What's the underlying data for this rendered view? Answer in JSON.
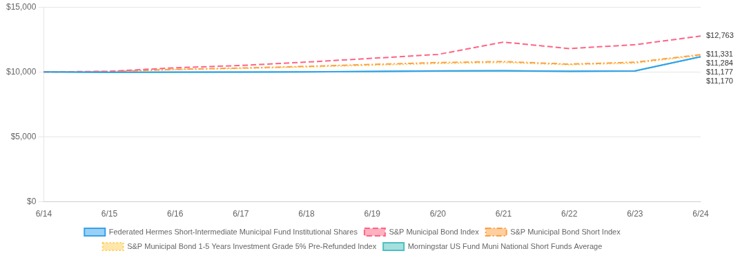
{
  "chart_data": {
    "type": "line",
    "categories": [
      "6/14",
      "6/15",
      "6/16",
      "6/17",
      "6/18",
      "6/19",
      "6/20",
      "6/21",
      "6/22",
      "6/23",
      "6/24"
    ],
    "series": [
      {
        "name": "Federated Hermes Short-Intermediate Municipal Fund Institutional Shares",
        "line_style": "solid",
        "values": [
          10000,
          9975,
          9985,
          9995,
          10010,
          10040,
          10080,
          10100,
          10060,
          10090,
          11177
        ]
      },
      {
        "name": "S&P Municipal Bond Index",
        "line_style": "dashed",
        "values": [
          10000,
          10050,
          10320,
          10500,
          10760,
          11050,
          11350,
          12300,
          11800,
          12100,
          12763
        ]
      },
      {
        "name": "S&P Municipal Bond Short Index",
        "line_style": "dashdot",
        "values": [
          10000,
          10030,
          10200,
          10300,
          10430,
          10580,
          10720,
          10800,
          10600,
          10750,
          11331
        ]
      },
      {
        "name": "S&P Municipal Bond 1-5 Years Investment Grade 5% Pre-Refunded Index",
        "line_style": "dotted",
        "values": [
          10000,
          10025,
          10180,
          10270,
          10390,
          10520,
          10650,
          10730,
          10560,
          10680,
          11284
        ]
      },
      {
        "name": "Morningstar US Fund Muni National Short Funds Average",
        "line_style": "solid",
        "values": [
          10000,
          9970,
          9980,
          9990,
          10005,
          10030,
          10065,
          10085,
          10050,
          10075,
          11170
        ]
      }
    ],
    "ylim": [
      0,
      15000
    ],
    "yticks": [
      {
        "value": 0,
        "label": "$0"
      },
      {
        "value": 5000,
        "label": "$5,000"
      },
      {
        "value": 10000,
        "label": "$10,000"
      },
      {
        "value": 15000,
        "label": "$15,000"
      }
    ],
    "grid": true,
    "legend": "bottom",
    "annotations": [
      {
        "text": "$12,763",
        "y": 12763
      },
      {
        "text": "$11,331",
        "y": 11331
      },
      {
        "text": "$11,284",
        "y": 11284
      },
      {
        "text": "$11,177",
        "y": 11177
      },
      {
        "text": "$11,170",
        "y": 11170
      }
    ]
  }
}
